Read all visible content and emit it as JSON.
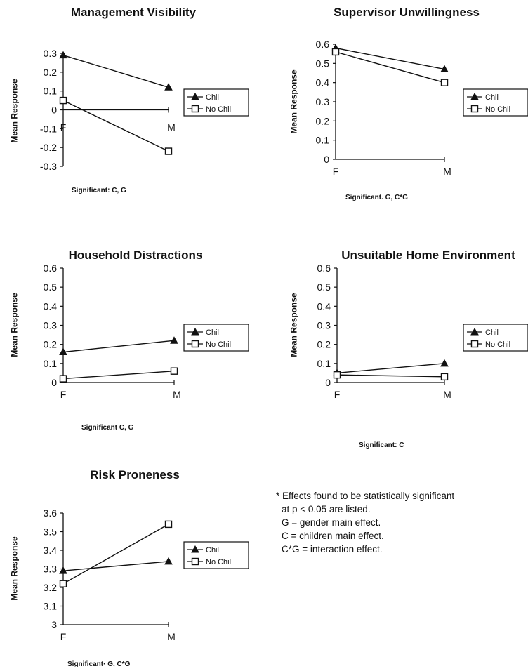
{
  "chart_data": [
    {
      "type": "line",
      "title": "Management Visibility",
      "ylabel": "Mean Response",
      "categories": [
        "F",
        "M"
      ],
      "ylim": [
        -0.3,
        0.3
      ],
      "yticks": [
        "0.3",
        "0.2",
        "0.1",
        "0",
        "-0.1",
        "-0.2",
        "-0.3"
      ],
      "series": [
        {
          "name": "Chil",
          "marker": "triangle",
          "values": [
            0.29,
            0.12
          ]
        },
        {
          "name": "No Chil",
          "marker": "square",
          "values": [
            0.05,
            -0.22
          ]
        }
      ],
      "significant": "Significant:  C, G",
      "legend": "right"
    },
    {
      "type": "line",
      "title": "Supervisor Unwillingness",
      "ylabel": "Mean Response",
      "categories": [
        "F",
        "M"
      ],
      "ylim": [
        0,
        0.6
      ],
      "yticks": [
        "0.6",
        "0.5",
        "0.4",
        "0.3",
        "0.2",
        "0.1",
        "0"
      ],
      "series": [
        {
          "name": "Chil",
          "marker": "triangle",
          "values": [
            0.58,
            0.47
          ]
        },
        {
          "name": "No Chil",
          "marker": "square",
          "values": [
            0.56,
            0.4
          ]
        }
      ],
      "significant": "Significant.  G, C*G",
      "legend": "right"
    },
    {
      "type": "line",
      "title": "Household Distractions",
      "ylabel": "Mean Response",
      "categories": [
        "F",
        "M"
      ],
      "ylim": [
        0,
        0.6
      ],
      "yticks": [
        "0.6",
        "0.5",
        "0.4",
        "0.3",
        "0.2",
        "0.1",
        "0"
      ],
      "series": [
        {
          "name": "Chil",
          "marker": "triangle",
          "values": [
            0.16,
            0.22
          ]
        },
        {
          "name": "No Chil",
          "marker": "square",
          "values": [
            0.02,
            0.06
          ]
        }
      ],
      "significant": "Significant   C, G",
      "legend": "right"
    },
    {
      "type": "line",
      "title": "Unsuitable Home Environment",
      "ylabel": "Mean Response",
      "categories": [
        "F",
        "M"
      ],
      "ylim": [
        0,
        0.6
      ],
      "yticks": [
        "0.6",
        "0.5",
        "0.4",
        "0.3",
        "0.2",
        "0.1",
        "0"
      ],
      "series": [
        {
          "name": "Chil",
          "marker": "triangle",
          "values": [
            0.05,
            0.1
          ]
        },
        {
          "name": "No Chil",
          "marker": "square",
          "values": [
            0.04,
            0.03
          ]
        }
      ],
      "significant": "Significant:  C",
      "legend": "right"
    },
    {
      "type": "line",
      "title": "Risk Proneness",
      "ylabel": "Mean Response",
      "categories": [
        "F",
        "M"
      ],
      "ylim": [
        3,
        3.6
      ],
      "yticks": [
        "3.6",
        "3.5",
        "3.4",
        "3.3",
        "3.2",
        "3.1",
        "3"
      ],
      "series": [
        {
          "name": "Chil",
          "marker": "triangle",
          "values": [
            3.29,
            3.34
          ]
        },
        {
          "name": "No Chil",
          "marker": "square",
          "values": [
            3.22,
            3.54
          ]
        }
      ],
      "significant": "Significant·  G, C*G",
      "legend": "right"
    }
  ],
  "footnote": {
    "lines": [
      "* Effects found to be statistically significant",
      "at p < 0.05 are listed.",
      "G = gender main effect.",
      "C = children main effect.",
      "C*G = interaction effect."
    ]
  }
}
